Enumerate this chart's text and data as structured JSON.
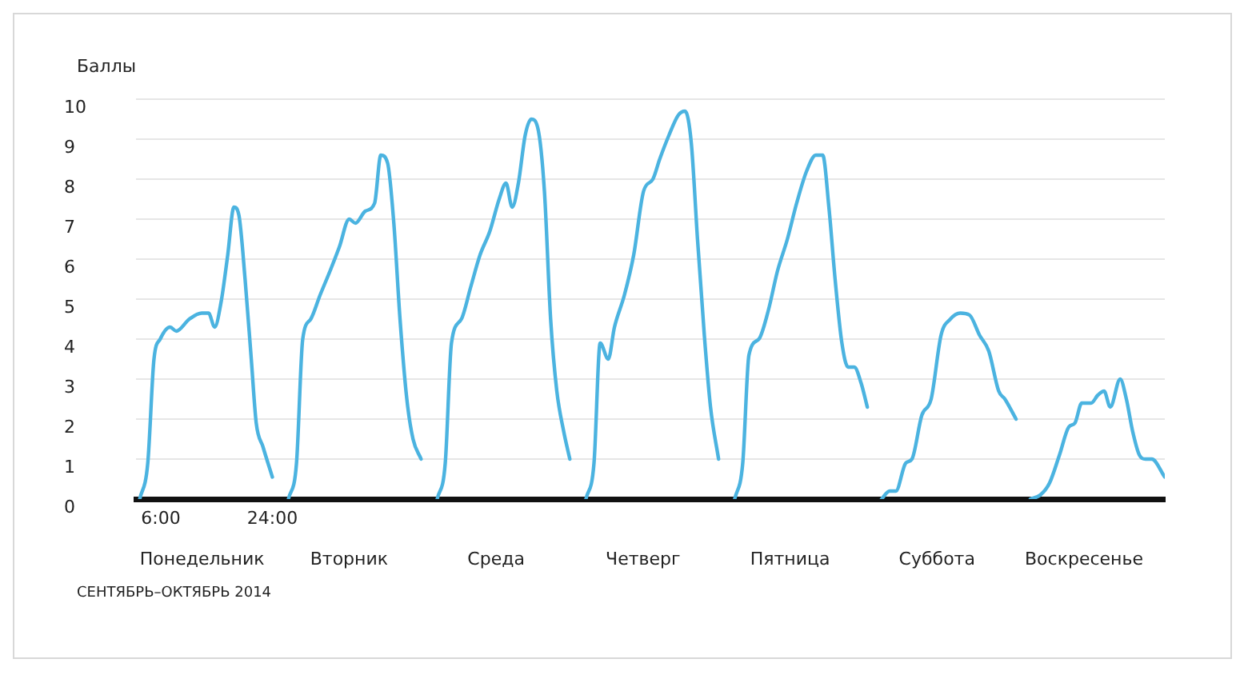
{
  "chart_data": {
    "type": "line",
    "ylabel": "Баллы",
    "xlim": [
      2,
      168
    ],
    "xticks": [
      {
        "value": 6,
        "label": "6:00"
      },
      {
        "value": 24,
        "label": "24:00"
      }
    ],
    "ylim": [
      0,
      10
    ],
    "yticks": [
      0,
      1,
      2,
      3,
      4,
      5,
      6,
      7,
      8,
      9,
      10
    ],
    "grid": "y",
    "marker": "none",
    "annotations": [
      "Понедельник",
      "Вторник",
      "Среда",
      "Четверг",
      "Пятница",
      "Суббота",
      "Воскресенье",
      "СЕНТЯБРЬ–ОКТЯБРЬ 2014"
    ],
    "series": [
      {
        "color": "#4bb3e0",
        "x": [
          2.6,
          3.9,
          4.9,
          5.9,
          7.5,
          8.5,
          10.6,
          12.6,
          13.7,
          14.7,
          15.7,
          16.8,
          17.8,
          18.6,
          19.6,
          20.6,
          21.4,
          22.5,
          24.0,
          25.3,
          26.6,
          27.9,
          28.9,
          30.2,
          31.7,
          33.3,
          34.8,
          36.4,
          37.4,
          39.0,
          40.5,
          41.5,
          42.6,
          43.6,
          44.6,
          45.7,
          46.7,
          48.0,
          49.3,
          50.6,
          51.9,
          52.9,
          54.5,
          56.0,
          57.5,
          59.1,
          60.6,
          61.7,
          62.7,
          63.7,
          64.8,
          65.8,
          66.8,
          67.9,
          68.9,
          69.9,
          71.0,
          72.0,
          73.3,
          74.6,
          75.9,
          76.9,
          78.2,
          79.2,
          80.8,
          82.3,
          83.9,
          85.4,
          86.5,
          88.0,
          89.5,
          90.6,
          91.6,
          92.6,
          93.7,
          94.7,
          96.0,
          97.3,
          98.6,
          99.9,
          100.9,
          102.5,
          104.0,
          105.5,
          107.1,
          108.6,
          110.2,
          111.7,
          112.8,
          113.8,
          114.8,
          115.9,
          116.9,
          117.9,
          119.0,
          120.0,
          121.2,
          122.3,
          123.6,
          124.6,
          126.2,
          127.2,
          128.8,
          130.3,
          131.9,
          133.4,
          135.0,
          136.5,
          138.1,
          139.6,
          141.2,
          142.2,
          144.0,
          145.2,
          146.3,
          147.9,
          149.4,
          151.0,
          152.5,
          153.5,
          154.6,
          156.1,
          157.2,
          158.2,
          159.2,
          160.8,
          161.8,
          162.8,
          163.9,
          164.9,
          165.9,
          168.0
        ],
        "values": [
          0,
          0.9,
          3.5,
          4,
          4.3,
          4.2,
          4.5,
          4.65,
          4.65,
          4.3,
          4.9,
          6.1,
          7.3,
          7.1,
          5.5,
          3.5,
          1.9,
          1.3,
          0.55,
          null,
          0,
          0.9,
          4,
          4.5,
          5.1,
          5.7,
          6.3,
          7,
          6.9,
          7.2,
          7.4,
          8.6,
          8.4,
          6.9,
          4.5,
          2.5,
          1.5,
          1,
          null,
          0,
          0.9,
          3.9,
          4.5,
          5.3,
          6.1,
          6.7,
          7.5,
          7.9,
          7.3,
          7.9,
          9.1,
          9.5,
          9.3,
          7.7,
          4.5,
          2.7,
          1.7,
          1,
          null,
          0,
          0.9,
          3.9,
          3.5,
          4.3,
          5.1,
          6.1,
          7.7,
          8,
          8.5,
          9.1,
          9.6,
          9.7,
          8.9,
          6.5,
          4.1,
          2.3,
          1,
          null,
          0,
          0.9,
          3.6,
          4,
          4.7,
          5.7,
          6.5,
          7.4,
          8.2,
          8.6,
          8.6,
          7.3,
          5.5,
          3.9,
          3.3,
          3.3,
          2.9,
          2.3,
          null,
          0,
          0.2,
          0.2,
          0.9,
          1,
          2.1,
          2.5,
          4.1,
          4.5,
          4.65,
          4.6,
          4.1,
          3.7,
          2.7,
          2.5,
          2,
          null,
          0,
          0.1,
          0.4,
          1.1,
          1.8,
          1.9,
          2.4,
          2.4,
          2.6,
          2.7,
          2.3,
          3,
          2.5,
          1.7,
          1.1,
          1,
          1,
          0.55
        ]
      }
    ]
  }
}
